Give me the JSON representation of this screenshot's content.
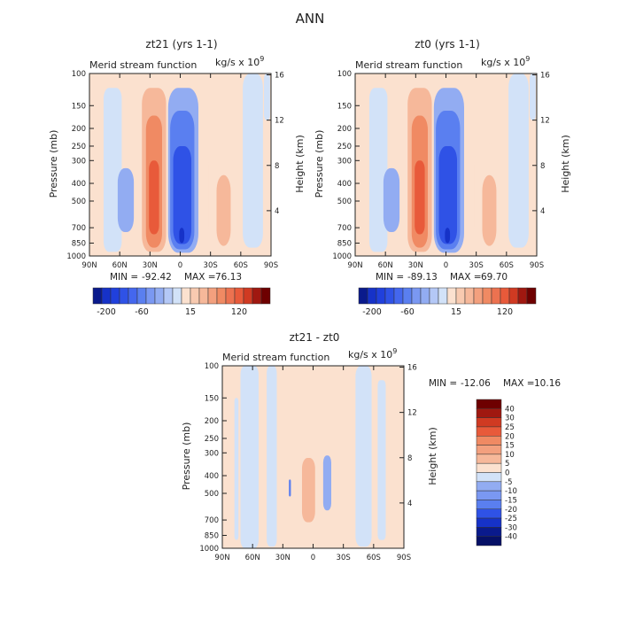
{
  "figure_title": "ANN",
  "colors": {
    "blue5": "#1632c8",
    "blue4": "#2f52e6",
    "blue3": "#5a7ff0",
    "blue2": "#92acf2",
    "blue1": "#d2e2f8",
    "red1": "#fbe1cf",
    "red2": "#f6b89a",
    "red3": "#f08a63",
    "red4": "#e85a3a",
    "red5": "#d03a22",
    "red6": "#a01810",
    "red7": "#6e0000",
    "axis": "#222222"
  },
  "chart_data": [
    {
      "type": "heatmap",
      "title": "zt21 (yrs 1-1)",
      "subtitle_left": "Merid stream function",
      "units": "kg/s x 10",
      "units_exp": "9",
      "xlabel": "",
      "ylabel": "Pressure (mb)",
      "y2label": "Height (km)",
      "x_ticks": [
        "90N",
        "60N",
        "30N",
        "0",
        "30S",
        "60S",
        "90S"
      ],
      "x_range": [
        90,
        -90
      ],
      "y_ticks": [
        "100",
        "150",
        "200",
        "250",
        "300",
        "400",
        "500",
        "700",
        "850",
        "1000"
      ],
      "y_tick_values": [
        100,
        150,
        200,
        250,
        300,
        400,
        500,
        700,
        850,
        1000
      ],
      "y_range": [
        100,
        1000
      ],
      "y2_ticks": [
        "16",
        "12",
        "8",
        "4"
      ],
      "y2_tick_values": [
        16,
        12,
        8,
        4
      ],
      "min_label": "MIN =",
      "min": "-92.42",
      "max_label": "MAX =",
      "max": "76.13",
      "colorbar": {
        "orientation": "horizontal",
        "labels": [
          "-200",
          "-60",
          "15",
          "120"
        ],
        "colors": [
          "#0a1a8c",
          "#1632c8",
          "#2040dc",
          "#2f52e6",
          "#4467ee",
          "#5a7ff0",
          "#7a98f2",
          "#92acf2",
          "#b4c8f6",
          "#d2e2f8",
          "#fbe1cf",
          "#f8cab0",
          "#f6b89a",
          "#f3a07e",
          "#f08a63",
          "#ec7250",
          "#e85a3a",
          "#d03a22",
          "#a01810",
          "#6e0000"
        ]
      }
    },
    {
      "type": "heatmap",
      "title": "zt0 (yrs 1-1)",
      "subtitle_left": "Merid stream function",
      "units": "kg/s x 10",
      "units_exp": "9",
      "xlabel": "",
      "ylabel": "Pressure (mb)",
      "y2label": "Height (km)",
      "x_ticks": [
        "90N",
        "60N",
        "30N",
        "0",
        "30S",
        "60S",
        "90S"
      ],
      "x_range": [
        90,
        -90
      ],
      "y_ticks": [
        "100",
        "150",
        "200",
        "250",
        "300",
        "400",
        "500",
        "700",
        "850",
        "1000"
      ],
      "y_tick_values": [
        100,
        150,
        200,
        250,
        300,
        400,
        500,
        700,
        850,
        1000
      ],
      "y_range": [
        100,
        1000
      ],
      "y2_ticks": [
        "16",
        "12",
        "8",
        "4"
      ],
      "y2_tick_values": [
        16,
        12,
        8,
        4
      ],
      "min_label": "MIN =",
      "min": "-89.13",
      "max_label": "MAX =",
      "max": "69.70",
      "colorbar": {
        "orientation": "horizontal",
        "labels": [
          "-200",
          "-60",
          "15",
          "120"
        ],
        "colors": [
          "#0a1a8c",
          "#1632c8",
          "#2040dc",
          "#2f52e6",
          "#4467ee",
          "#5a7ff0",
          "#7a98f2",
          "#92acf2",
          "#b4c8f6",
          "#d2e2f8",
          "#fbe1cf",
          "#f8cab0",
          "#f6b89a",
          "#f3a07e",
          "#f08a63",
          "#ec7250",
          "#e85a3a",
          "#d03a22",
          "#a01810",
          "#6e0000"
        ]
      }
    },
    {
      "type": "heatmap",
      "title": "zt21 - zt0",
      "subtitle_left": "Merid stream function",
      "units": "kg/s x 10",
      "units_exp": "9",
      "xlabel": "",
      "ylabel": "Pressure (mb)",
      "y2label": "Height (km)",
      "x_ticks": [
        "90N",
        "60N",
        "30N",
        "0",
        "30S",
        "60S",
        "90S"
      ],
      "x_range": [
        90,
        -90
      ],
      "y_ticks": [
        "100",
        "150",
        "200",
        "250",
        "300",
        "400",
        "500",
        "700",
        "850",
        "1000"
      ],
      "y_tick_values": [
        100,
        150,
        200,
        250,
        300,
        400,
        500,
        700,
        850,
        1000
      ],
      "y_range": [
        100,
        1000
      ],
      "y2_ticks": [
        "16",
        "12",
        "8",
        "4"
      ],
      "y2_tick_values": [
        16,
        12,
        8,
        4
      ],
      "min_label": "MIN =",
      "min": "-12.06",
      "max_label": "MAX =",
      "max": "10.16",
      "colorbar": {
        "orientation": "vertical",
        "labels": [
          "40",
          "30",
          "25",
          "20",
          "15",
          "10",
          "5",
          "0",
          "-5",
          "-10",
          "-15",
          "-20",
          "-25",
          "-30",
          "-40"
        ],
        "colors": [
          "#6e0000",
          "#a01810",
          "#d03a22",
          "#e85a3a",
          "#f08a63",
          "#f3a07e",
          "#f6b89a",
          "#fbe1cf",
          "#d2e2f8",
          "#92acf2",
          "#7a98f2",
          "#5a7ff0",
          "#2f52e6",
          "#1632c8",
          "#0a1a8c",
          "#061066"
        ]
      }
    }
  ]
}
